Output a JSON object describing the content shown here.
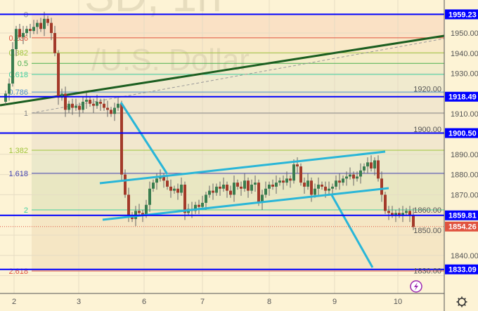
{
  "watermark": {
    "symbol": "SD, 1h",
    "description": "/U.S. Dollar"
  },
  "chart_data": {
    "type": "candlestick",
    "title": "",
    "ylim": [
      1825,
      1966
    ],
    "y_ticks": [
      1830,
      1840,
      1850,
      1860,
      1870,
      1880,
      1890,
      1900,
      1910,
      1920,
      1930,
      1940,
      1950
    ],
    "x_ticks": [
      "2",
      "3",
      "6",
      "7",
      "8",
      "9",
      "10"
    ],
    "grid": true,
    "closes": [
      1920,
      1925,
      1942,
      1952,
      1948,
      1950,
      1952,
      1951,
      1953,
      1955,
      1952,
      1957,
      1955,
      1950,
      1940,
      1918,
      1920,
      1912,
      1915,
      1913,
      1914,
      1912,
      1916,
      1917,
      1915,
      1914,
      1916,
      1915,
      1913,
      1912,
      1910,
      1913,
      1915,
      1880,
      1870,
      1860,
      1858,
      1862,
      1861,
      1860,
      1865,
      1873,
      1876,
      1878,
      1879,
      1877,
      1874,
      1872,
      1873,
      1871,
      1875,
      1861,
      1863,
      1862,
      1865,
      1864,
      1866,
      1870,
      1872,
      1871,
      1874,
      1873,
      1875,
      1872,
      1870,
      1876,
      1874,
      1873,
      1877,
      1872,
      1875,
      1876,
      1866,
      1870,
      1873,
      1875,
      1874,
      1876,
      1877,
      1876,
      1878,
      1877,
      1885,
      1884,
      1876,
      1874,
      1877,
      1870,
      1873,
      1875,
      1874,
      1872,
      1873,
      1874,
      1877,
      1876,
      1878,
      1879,
      1880,
      1878,
      1879,
      1882,
      1884,
      1886,
      1883,
      1887,
      1878,
      1870,
      1862,
      1861,
      1860,
      1861,
      1860,
      1861,
      1862,
      1860,
      1854
    ],
    "horizontal_levels": [
      {
        "price": 1959.23,
        "label": "1959.23",
        "color": "#0000ff"
      },
      {
        "price": 1918.49,
        "label": "1918.49",
        "color": "#0000ff"
      },
      {
        "price": 1900.5,
        "label": "1900.50",
        "color": "#0000ff"
      },
      {
        "price": 1859.81,
        "label": "1859.81",
        "color": "#0000ff"
      },
      {
        "price": 1833.09,
        "label": "1833.09",
        "color": "#0000ff"
      }
    ],
    "current_price": {
      "price": 1854.26,
      "label": "1854.26",
      "color": "#e0533f"
    },
    "fib_levels": [
      {
        "level": "0",
        "price": 1959.2,
        "color": "#888888"
      },
      {
        "level": "0.236",
        "price": 1947.6,
        "color": "#e0533f"
      },
      {
        "level": "0.382",
        "price": 1940.2,
        "color": "#9fc43a"
      },
      {
        "level": "0.5",
        "price": 1935.0,
        "color": "#4caf50"
      },
      {
        "level": "0.618",
        "price": 1929.5,
        "color": "#3fcf9f"
      },
      {
        "level": "0.786",
        "price": 1920.8,
        "color": "#4a90c8"
      },
      {
        "level": "1",
        "price": 1910.4,
        "color": "#888888"
      },
      {
        "level": "1.382",
        "price": 1892.0,
        "color": "#9fc43a"
      },
      {
        "level": "1.618",
        "price": 1880.6,
        "color": "#3f3fb0"
      },
      {
        "level": "2",
        "price": 1862.5,
        "color": "#3fcf9f"
      },
      {
        "level": "2.618",
        "price": 1832.3,
        "color": "#e0533f"
      }
    ]
  },
  "colors": {
    "up": "#3a7d4f",
    "down": "#a33a2a",
    "trend": "#1b5e20",
    "channel": "#29b6d8",
    "level": "#0000ff"
  },
  "icons": {
    "lightning": "lightning-icon",
    "settings": "gear-icon"
  }
}
